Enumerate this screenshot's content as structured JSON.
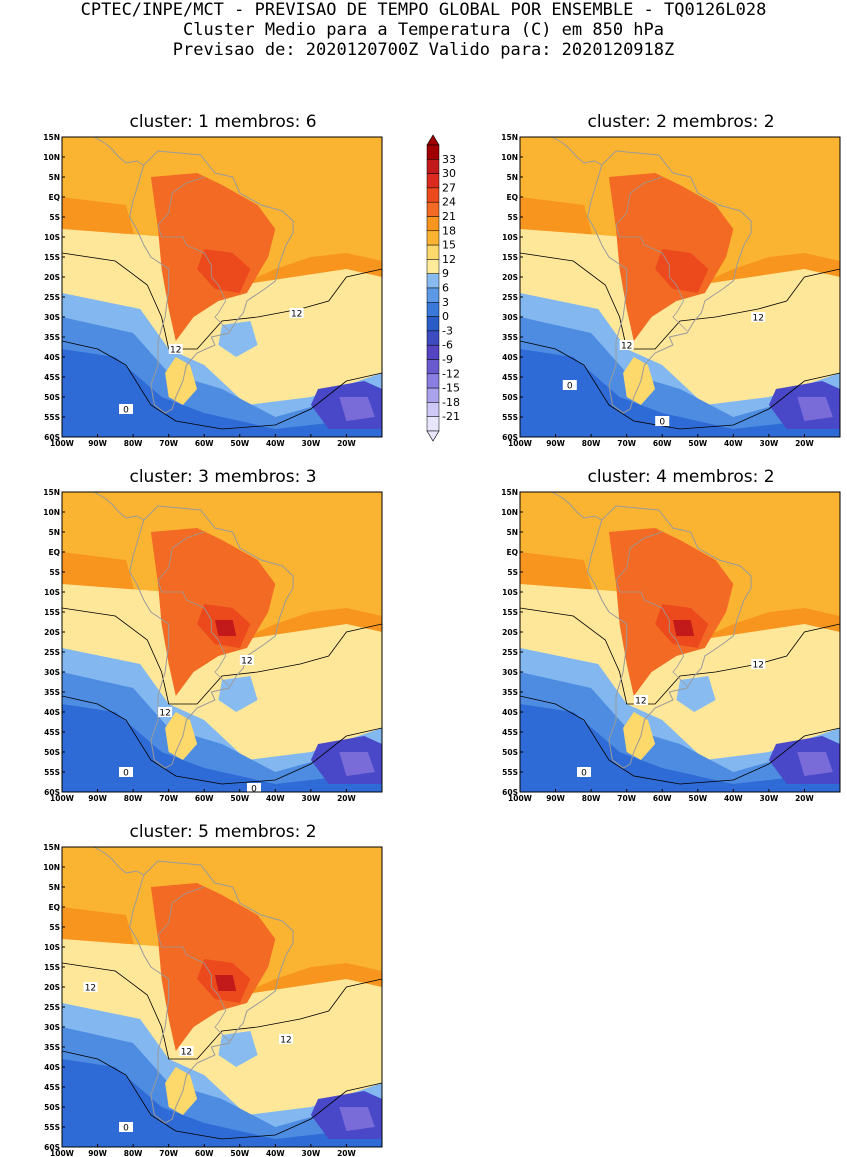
{
  "header": {
    "line1": "CPTEC/INPE/MCT - PREVISAO DE TEMPO GLOBAL POR ENSEMBLE - TQ0126L028",
    "line2": "Cluster Medio para a Temperatura (C) em 850 hPa",
    "line3": "Previsao de: 2020120700Z   Valido para: 2020120918Z"
  },
  "axes": {
    "lat_labels": [
      "15N",
      "10N",
      "5N",
      "EQ",
      "5S",
      "10S",
      "15S",
      "20S",
      "25S",
      "30S",
      "35S",
      "40S",
      "45S",
      "50S",
      "55S",
      "60S"
    ],
    "lon_labels": [
      "100W",
      "90W",
      "80W",
      "70W",
      "60W",
      "50W",
      "40W",
      "30W",
      "20W"
    ]
  },
  "panels": [
    {
      "title": "cluster: 1   membros: 6",
      "contour_labels": [
        "12",
        "12",
        "0"
      ]
    },
    {
      "title": "cluster: 2   membros: 2",
      "contour_labels": [
        "12",
        "12",
        "0",
        "0"
      ]
    },
    {
      "title": "cluster: 3   membros: 3",
      "contour_labels": [
        "12",
        "12",
        "0",
        "0"
      ]
    },
    {
      "title": "cluster: 4   membros: 2",
      "contour_labels": [
        "12",
        "12",
        "0"
      ]
    },
    {
      "title": "cluster: 5   membros: 2",
      "contour_labels": [
        "12",
        "12",
        "12",
        "0"
      ]
    }
  ],
  "legend": {
    "labels": [
      "33",
      "30",
      "27",
      "24",
      "21",
      "18",
      "15",
      "12",
      "9",
      "6",
      "3",
      "0",
      "-3",
      "-6",
      "-9",
      "-12",
      "-15",
      "-18",
      "-21"
    ],
    "colors": [
      "#a00000",
      "#c21a1a",
      "#dc2a20",
      "#ec4a1c",
      "#f26a24",
      "#f7951e",
      "#fbb432",
      "#fdd86a",
      "#ffeb9a",
      "#88bcf0",
      "#5c9ae6",
      "#3a78da",
      "#2a5cc8",
      "#3c4cc0",
      "#5444c2",
      "#6a5ad0",
      "#8a7ee0",
      "#aaa2ec",
      "#cdc8f6",
      "#e8e6fc"
    ],
    "top_color": "#a00000",
    "bottom_color": "#e8e6fc"
  }
}
